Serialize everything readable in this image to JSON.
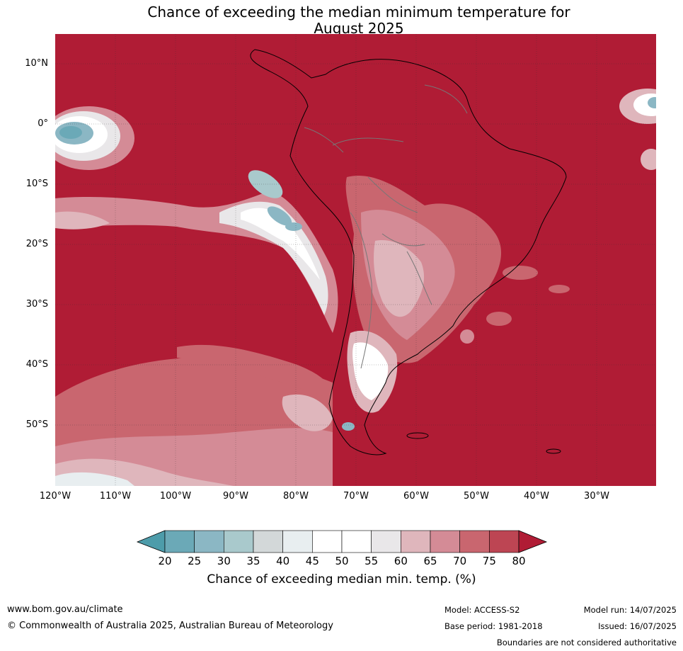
{
  "title_line1": "Chance of exceeding the median minimum temperature for",
  "title_line2": "August 2025",
  "lat_labels": [
    "10°N",
    "0°",
    "10°S",
    "20°S",
    "30°S",
    "40°S",
    "50°S"
  ],
  "lon_labels": [
    "120°W",
    "110°W",
    "100°W",
    "90°W",
    "80°W",
    "70°W",
    "60°W",
    "50°W",
    "40°W",
    "30°W"
  ],
  "colorbar": {
    "ticks": [
      "20",
      "25",
      "30",
      "35",
      "40",
      "45",
      "50",
      "55",
      "60",
      "65",
      "70",
      "75",
      "80"
    ],
    "label": "Chance of exceeding median min. temp. (%)",
    "colors": [
      "#6ba9b7",
      "#8bb7c4",
      "#a9c9cc",
      "#d3d8d9",
      "#e8eef0",
      "#ffffff",
      "#ffffff",
      "#e9e7e9",
      "#dfb6bc",
      "#d48b96",
      "#c9666f",
      "#bd4553"
    ],
    "low_color": "#4d9caa",
    "high_color": "#b01c35"
  },
  "footer": {
    "url": "www.bom.gov.au/climate",
    "copyright": "© Commonwealth of Australia 2025, Australian Bureau of Meteorology",
    "model": "Model: ACCESS-S2",
    "base_period": "Base period: 1981-2018",
    "model_run": "Model run: 14/07/2025",
    "issued": "Issued: 16/07/2025",
    "disclaimer": "Boundaries are not considered authoritative"
  }
}
